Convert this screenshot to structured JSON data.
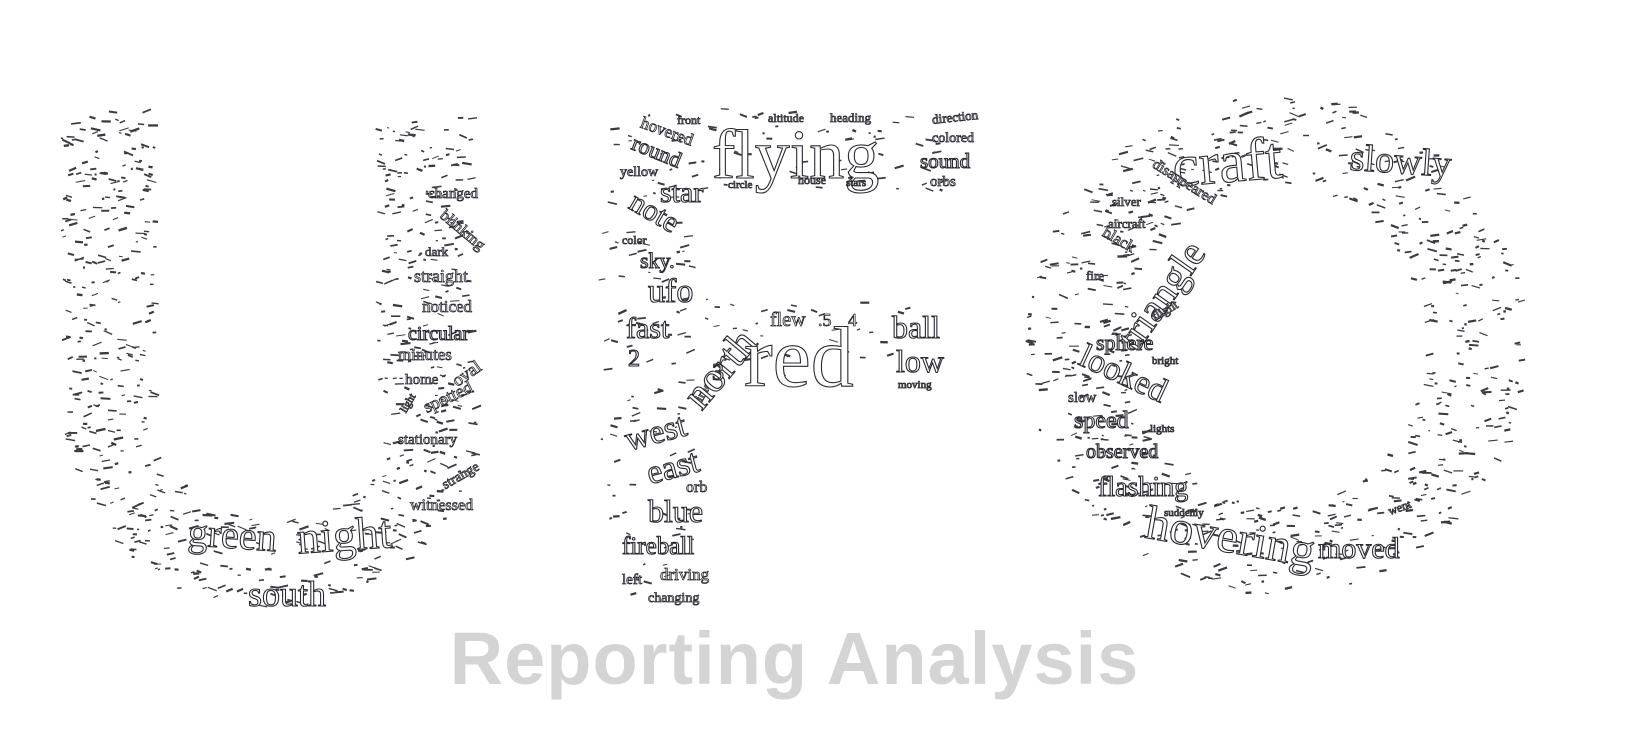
{
  "subtitle": "Reporting Analysis",
  "words": {
    "flying": "flying",
    "craft": "craft",
    "slowly": "slowly",
    "red": "red",
    "ball": "ball",
    "low": "low",
    "flew": "flew",
    "green": "green",
    "night": "night",
    "south": "south",
    "hovering": "hovering",
    "moved": "moved",
    "triangle": "triangle",
    "looked": "looked",
    "speed": "speed",
    "observed": "observed",
    "flashing": "flashing",
    "sphere": "sphere",
    "north": "north",
    "west": "west",
    "east": "east",
    "blue": "blue",
    "fireball": "fireball",
    "driving": "driving",
    "changing": "changing",
    "star": "star",
    "note": "note",
    "sky": "sky.",
    "ufo": "ufo",
    "fast": "fast",
    "hovered": "hovered",
    "round": "round",
    "sound": "sound",
    "orbs": "orbs",
    "circular": "circular",
    "straight": "straight",
    "noticed": "noticed",
    "minutes": "minutes",
    "spotted": "spotted",
    "oval": "oval",
    "stationary": "stationary",
    "witnessed": "witnessed",
    "blinking": "blinking",
    "changed": "changed",
    "disappeared": "disappeared",
    "black": "black",
    "orb": "orb",
    "slow": "slow",
    "home": "home",
    "yellow": "yellow",
    "front": "front",
    "altitude": "altitude",
    "heading": "heading",
    "direction": "direction",
    "colored": "colored",
    "strange": "strange",
    "circle": "circle",
    "house": "house",
    "stars": "stars",
    "n2": "2",
    "n3": "3",
    "n4": "4",
    "n5": ".5",
    "color": "color",
    "time": "time",
    "left": "left",
    "fire": "fire",
    "silver": "silver",
    "aircraft": "aircraft",
    "dark": "dark",
    "light": "light",
    "flight": "flight",
    "bright": "bright",
    "suddenly": "suddenly",
    "moving": "moving",
    "lights": "lights",
    "went": "went"
  }
}
